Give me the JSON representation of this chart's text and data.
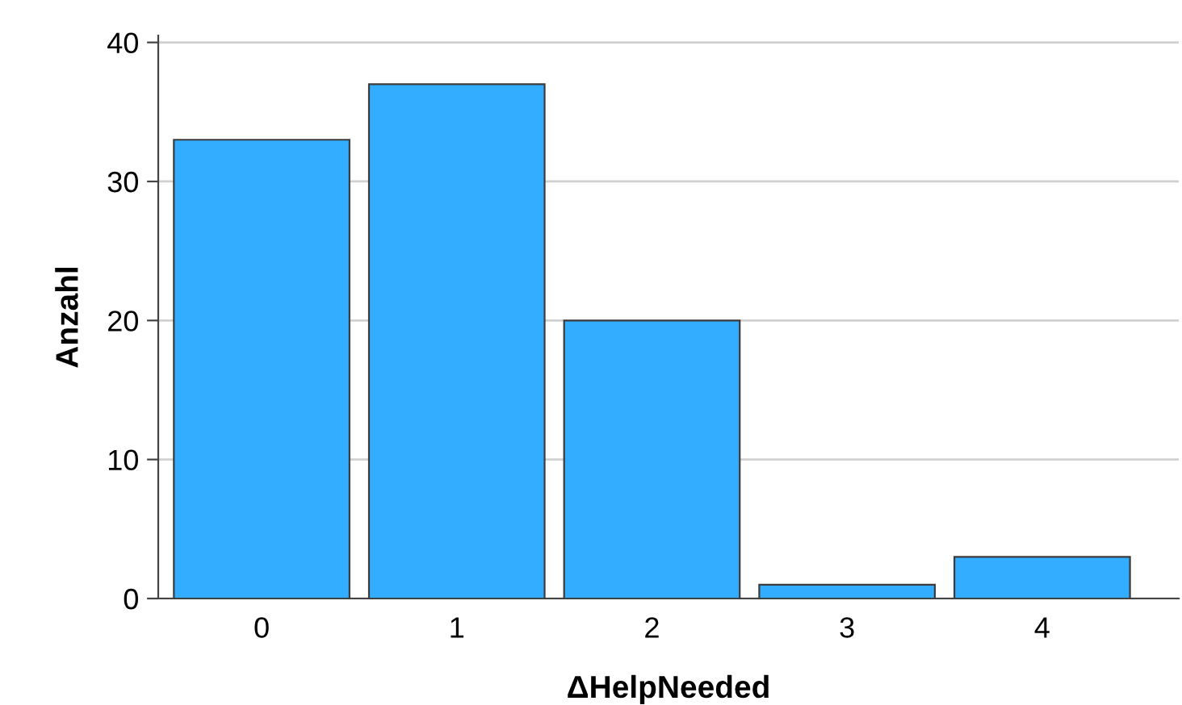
{
  "chart_data": {
    "type": "bar",
    "xlabel": "ΔHelpNeeded",
    "ylabel": "Anzahl",
    "categories": [
      "0",
      "1",
      "2",
      "3",
      "4"
    ],
    "values": [
      33,
      37,
      20,
      1,
      3
    ],
    "color": "#33adff",
    "ylim": [
      0,
      40.5
    ],
    "yticks": [
      0,
      10,
      20,
      30,
      40
    ],
    "grid": "y"
  }
}
